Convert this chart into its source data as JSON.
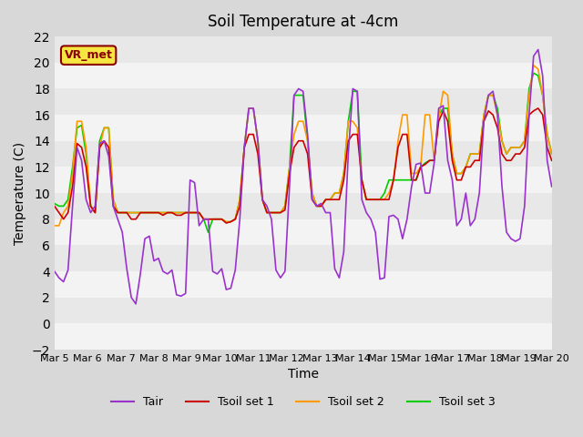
{
  "title": "Soil Temperature at -4cm",
  "xlabel": "Time",
  "ylabel": "Temperature (C)",
  "ylim": [
    -2,
    22
  ],
  "annotation": "VR_met",
  "background_color": "#e8e8e8",
  "plot_bg_color": "#e0e0e0",
  "legend": [
    "Tair",
    "Tsoil set 1",
    "Tsoil set 2",
    "Tsoil set 3"
  ],
  "line_colors": [
    "#9933cc",
    "#cc0000",
    "#ff9900",
    "#00cc00"
  ],
  "xtick_labels": [
    "Mar 5",
    "Mar 6",
    "Mar 7",
    "Mar 8",
    "Mar 9",
    "Mar 10",
    "Mar 11",
    "Mar 12",
    "Mar 13",
    "Mar 14",
    "Mar 15",
    "Mar 16",
    "Mar 17",
    "Mar 18",
    "Mar 19",
    "Mar 20"
  ],
  "tair": [
    4.0,
    3.5,
    3.2,
    4.1,
    9.0,
    13.5,
    12.5,
    9.5,
    8.5,
    9.0,
    13.8,
    14.0,
    12.8,
    9.0,
    8.0,
    7.0,
    4.2,
    2.0,
    1.5,
    3.8,
    6.5,
    6.7,
    4.8,
    5.0,
    4.0,
    3.8,
    4.1,
    2.2,
    2.1,
    2.3,
    11.0,
    10.8,
    7.5,
    8.0,
    8.0,
    4.0,
    3.8,
    4.2,
    2.6,
    2.7,
    4.1,
    8.0,
    13.5,
    16.5,
    16.5,
    14.0,
    9.5,
    9.0,
    8.0,
    4.1,
    3.5,
    4.0,
    10.5,
    17.5,
    18.0,
    17.8,
    14.5,
    9.5,
    9.0,
    9.2,
    8.5,
    8.5,
    4.2,
    3.5,
    5.5,
    13.0,
    18.0,
    17.8,
    9.5,
    8.5,
    8.0,
    7.0,
    3.4,
    3.5,
    8.2,
    8.3,
    8.0,
    6.5,
    8.0,
    10.5,
    12.2,
    12.3,
    10.0,
    10.0,
    12.3,
    16.5,
    16.7,
    12.5,
    11.0,
    7.5,
    8.0,
    10.0,
    7.5,
    8.0,
    10.0,
    15.5,
    17.5,
    17.8,
    16.0,
    10.5,
    7.0,
    6.5,
    6.3,
    6.5,
    9.0,
    16.0,
    20.5,
    21.0,
    19.0,
    12.5,
    10.5
  ],
  "tsoil1": [
    9.0,
    8.5,
    8.0,
    8.5,
    10.5,
    13.8,
    13.5,
    12.0,
    9.0,
    8.5,
    13.5,
    14.0,
    13.5,
    9.0,
    8.5,
    8.5,
    8.5,
    8.0,
    8.0,
    8.5,
    8.5,
    8.5,
    8.5,
    8.5,
    8.3,
    8.5,
    8.5,
    8.3,
    8.3,
    8.5,
    8.5,
    8.5,
    8.5,
    8.0,
    8.0,
    8.0,
    8.0,
    8.0,
    7.7,
    7.8,
    8.0,
    9.0,
    13.5,
    14.5,
    14.5,
    13.0,
    9.5,
    8.5,
    8.5,
    8.5,
    8.5,
    8.7,
    11.5,
    13.5,
    14.0,
    14.0,
    13.0,
    9.5,
    9.0,
    9.0,
    9.5,
    9.5,
    9.5,
    9.5,
    11.0,
    14.0,
    14.5,
    14.5,
    11.0,
    9.5,
    9.5,
    9.5,
    9.5,
    9.5,
    9.5,
    11.0,
    13.5,
    14.5,
    14.5,
    11.0,
    11.0,
    12.0,
    12.2,
    12.5,
    12.5,
    15.5,
    16.3,
    15.5,
    12.5,
    11.0,
    11.0,
    12.0,
    12.0,
    12.5,
    12.5,
    15.5,
    16.3,
    16.0,
    15.0,
    13.0,
    12.5,
    12.5,
    13.0,
    13.0,
    13.5,
    16.0,
    16.3,
    16.5,
    16.0,
    13.5,
    12.5
  ],
  "tsoil2": [
    7.5,
    7.5,
    8.5,
    9.0,
    11.5,
    15.5,
    15.5,
    13.5,
    9.0,
    8.5,
    13.5,
    15.0,
    15.0,
    9.5,
    8.5,
    8.5,
    8.5,
    8.5,
    8.5,
    8.5,
    8.5,
    8.5,
    8.5,
    8.5,
    8.5,
    8.5,
    8.5,
    8.5,
    8.5,
    8.5,
    8.5,
    8.5,
    8.5,
    8.0,
    8.0,
    8.0,
    8.0,
    8.0,
    7.8,
    7.8,
    8.0,
    9.5,
    13.5,
    16.5,
    16.5,
    14.0,
    9.5,
    8.5,
    8.5,
    8.5,
    8.5,
    9.0,
    12.0,
    14.5,
    15.5,
    15.5,
    14.0,
    10.0,
    9.0,
    9.0,
    9.5,
    9.5,
    10.0,
    10.0,
    11.5,
    15.5,
    15.5,
    15.0,
    11.0,
    9.5,
    9.5,
    9.5,
    9.5,
    9.5,
    10.0,
    11.0,
    14.0,
    16.0,
    16.0,
    11.5,
    11.5,
    12.0,
    16.0,
    16.0,
    12.5,
    15.8,
    17.8,
    17.5,
    13.0,
    11.5,
    11.5,
    12.0,
    13.0,
    13.0,
    13.0,
    16.0,
    17.5,
    17.5,
    16.0,
    14.0,
    13.0,
    13.5,
    13.5,
    13.5,
    14.0,
    17.5,
    19.8,
    19.5,
    17.5,
    14.5,
    13.0
  ],
  "tsoil3": [
    9.2,
    9.0,
    9.0,
    9.5,
    12.0,
    15.0,
    15.2,
    13.0,
    9.0,
    8.5,
    14.0,
    15.0,
    15.0,
    9.5,
    8.5,
    8.5,
    8.5,
    8.5,
    8.5,
    8.5,
    8.5,
    8.5,
    8.5,
    8.5,
    8.5,
    8.5,
    8.5,
    8.5,
    8.5,
    8.5,
    8.5,
    8.5,
    8.5,
    8.0,
    7.0,
    8.0,
    8.0,
    8.0,
    7.8,
    7.8,
    8.0,
    9.5,
    13.5,
    16.5,
    16.5,
    14.0,
    9.5,
    8.5,
    8.5,
    8.5,
    8.5,
    9.0,
    12.0,
    17.5,
    17.5,
    17.5,
    14.0,
    10.0,
    9.0,
    9.0,
    9.5,
    9.5,
    10.0,
    10.0,
    11.5,
    15.5,
    17.8,
    17.8,
    11.0,
    9.5,
    9.5,
    9.5,
    9.5,
    10.0,
    11.0,
    11.0,
    11.0,
    11.0,
    11.0,
    11.0,
    11.0,
    12.0,
    12.3,
    12.5,
    12.5,
    16.0,
    16.5,
    16.5,
    13.0,
    11.5,
    11.5,
    12.0,
    13.0,
    13.0,
    13.0,
    16.0,
    17.5,
    17.5,
    16.5,
    14.0,
    13.0,
    13.5,
    13.5,
    13.5,
    14.0,
    18.0,
    19.2,
    19.0,
    17.5,
    14.5,
    13.0
  ]
}
